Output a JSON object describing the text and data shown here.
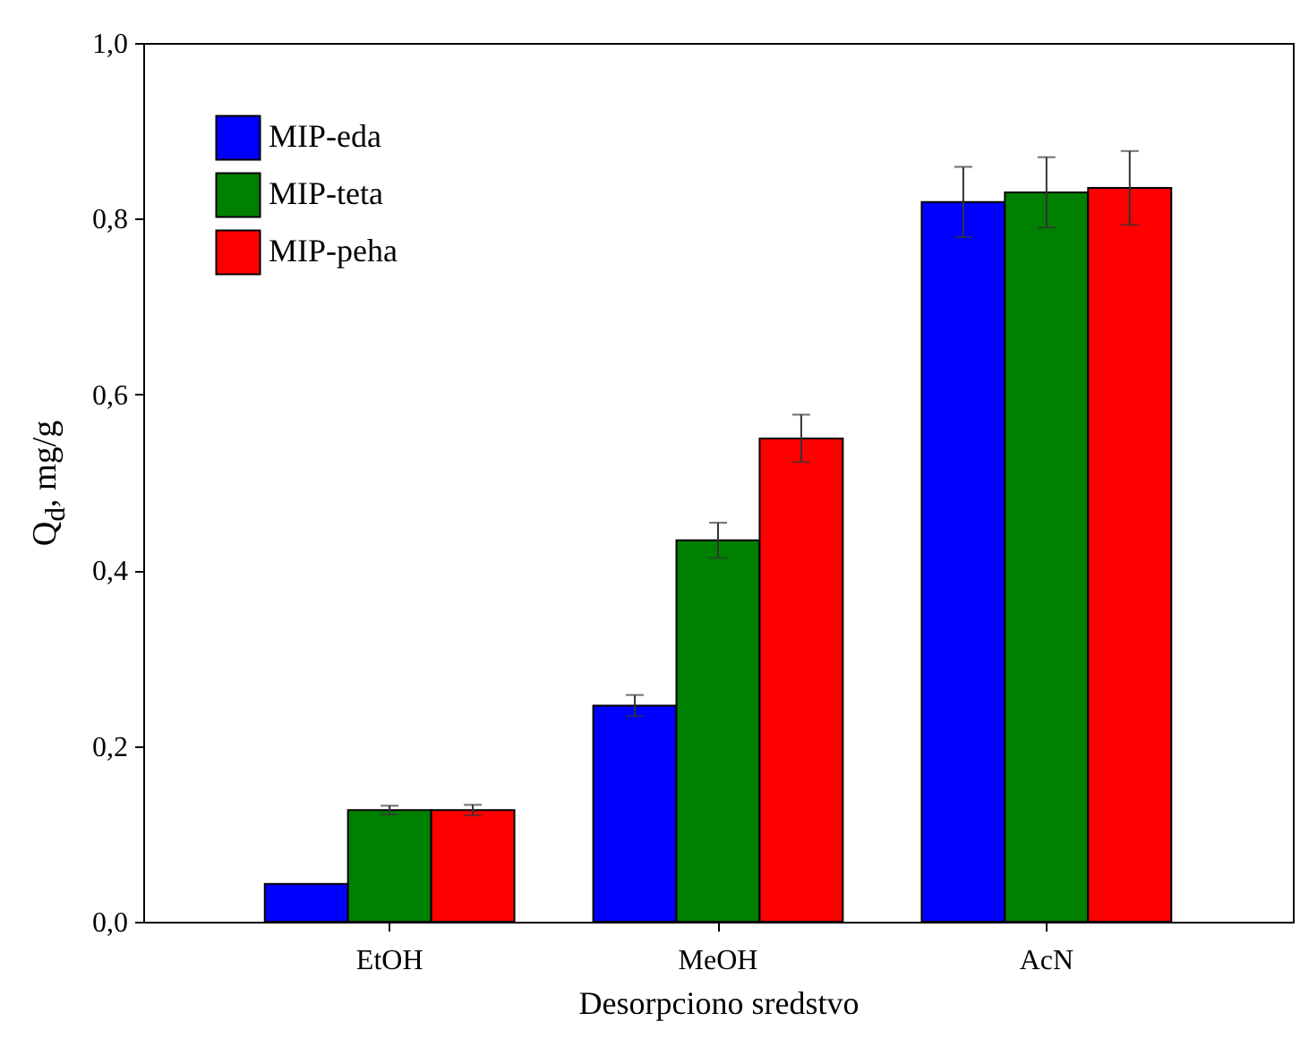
{
  "chart_data": {
    "type": "bar",
    "xlabel": "Desorpciono sredstvo",
    "ylabel": "Q$_{d}$, mg/g",
    "categories": [
      "EtOH",
      "MeOH",
      "AcN"
    ],
    "series": [
      {
        "name": "MIP-eda",
        "color": "#0000ff",
        "values": [
          0.043,
          0.246,
          0.819
        ],
        "errors": [
          null,
          0.012,
          0.04
        ]
      },
      {
        "name": "MIP-teta",
        "color": "#008000",
        "values": [
          0.127,
          0.434,
          0.83
        ],
        "errors": [
          0.005,
          0.02,
          0.04
        ]
      },
      {
        "name": "MIP-peha",
        "color": "#ff0000",
        "values": [
          0.127,
          0.55,
          0.835
        ],
        "errors": [
          0.006,
          0.027,
          0.042
        ]
      }
    ],
    "ylim": [
      0,
      1
    ],
    "yticks": [
      {
        "value": 0,
        "label": "0,0"
      },
      {
        "value": 0.2,
        "label": "0,2"
      },
      {
        "value": 0.4,
        "label": "0,4"
      },
      {
        "value": 0.6,
        "label": "0,6"
      },
      {
        "value": 0.8,
        "label": "0,8"
      },
      {
        "value": 1,
        "label": "1,0"
      }
    ],
    "grid": false,
    "legend": "top left"
  }
}
